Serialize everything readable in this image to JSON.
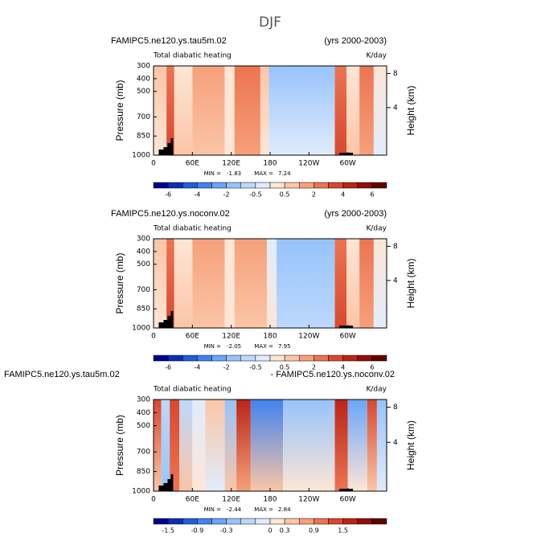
{
  "title": "DJF",
  "chart_data": [
    {
      "type": "contour",
      "left_title": "FAMIPC5.ne120.ys.tau5m.02",
      "right_title": "(yrs 2000-2003)",
      "subtitle": "Total diabatic heating",
      "units": "K/day",
      "ylabel": "Pressure (mb)",
      "y2label": "Height (km)",
      "xlim": [
        0,
        360
      ],
      "xticks": [
        0,
        {
          "value": 60,
          "label": "60E"
        },
        {
          "value": 120,
          "label": "120E"
        },
        180,
        {
          "value": 240,
          "label": "120W"
        },
        {
          "value": 300,
          "label": "60W"
        }
      ],
      "ylim": [
        1000,
        300
      ],
      "yticks": [
        300,
        400,
        500,
        700,
        850,
        1000
      ],
      "y2lim": [
        -1.56,
        8.88
      ],
      "y2ticks": [
        4,
        8
      ],
      "min_label": "MIN =",
      "min": -1.83,
      "max_label": "MAX =",
      "max": 7.24,
      "colorbar_labels": [
        -6,
        -4,
        -2,
        -0.5,
        0.5,
        2,
        4,
        6
      ]
    },
    {
      "type": "contour",
      "left_title": "FAMIPC5.ne120.ys.noconv.02",
      "right_title": "(yrs 2000-2003)",
      "subtitle": "Total diabatic heating",
      "units": "K/day",
      "ylabel": "Pressure (mb)",
      "y2label": "Height (km)",
      "xlim": [
        0,
        360
      ],
      "xticks": [
        0,
        {
          "value": 60,
          "label": "60E"
        },
        {
          "value": 120,
          "label": "120E"
        },
        180,
        {
          "value": 240,
          "label": "120W"
        },
        {
          "value": 300,
          "label": "60W"
        }
      ],
      "ylim": [
        1000,
        300
      ],
      "yticks": [
        300,
        400,
        500,
        700,
        850,
        1000
      ],
      "y2lim": [
        -1.56,
        8.88
      ],
      "y2ticks": [
        4,
        8
      ],
      "min_label": "MIN =",
      "min": -2.05,
      "max_label": "MAX =",
      "max": 7.95,
      "colorbar_labels": [
        -6,
        -4,
        -2,
        -0.5,
        0.5,
        2,
        4,
        6
      ]
    },
    {
      "type": "contour",
      "left_title": "FAMIPC5.ne120.ys.tau5m.02",
      "right_title": "- FAMIPC5.ne120.ys.noconv.02",
      "subtitle": "Total diabatic heating",
      "units": "K/day",
      "ylabel": "Pressure (mb)",
      "y2label": "Height (km)",
      "xlim": [
        0,
        360
      ],
      "xticks": [
        0,
        {
          "value": 60,
          "label": "60E"
        },
        {
          "value": 120,
          "label": "120E"
        },
        180,
        {
          "value": 240,
          "label": "120W"
        },
        {
          "value": 300,
          "label": "60W"
        }
      ],
      "ylim": [
        1000,
        300
      ],
      "yticks": [
        300,
        400,
        500,
        700,
        850,
        1000
      ],
      "y2lim": [
        -1.56,
        8.88
      ],
      "y2ticks": [
        4,
        8
      ],
      "min_label": "MIN =",
      "min": -2.44,
      "max_label": "MAX =",
      "max": 2.84,
      "colorbar_labels": [
        -1.5,
        -0.9,
        -0.3,
        0,
        0.3,
        0.9,
        1.5
      ]
    }
  ]
}
